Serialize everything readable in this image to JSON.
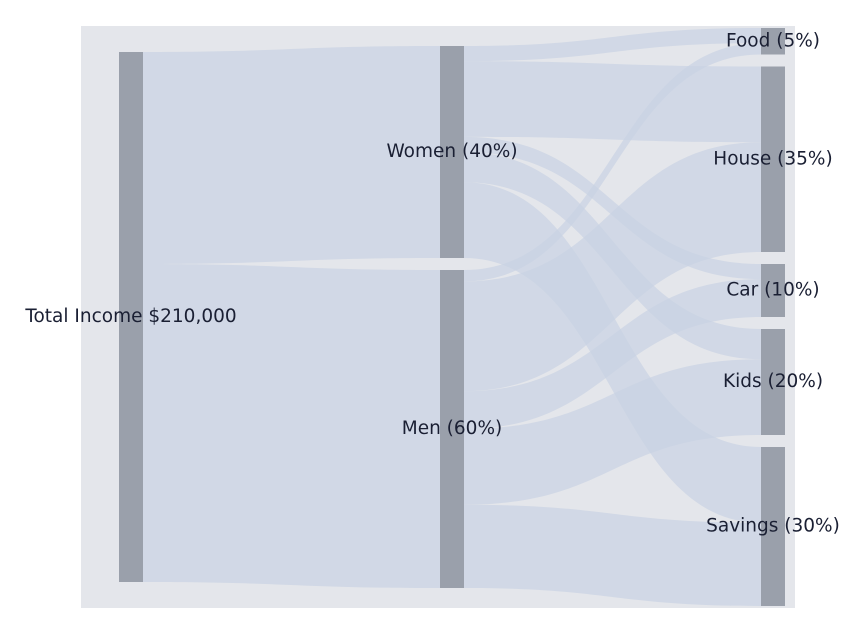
{
  "chart_data": {
    "type": "sankey",
    "title": "",
    "colors": {
      "background": "#e4e6eb",
      "node": "#9aa0ab",
      "link": "#c9d3e3",
      "text": "#1a1f33"
    },
    "nodes": [
      {
        "id": "total",
        "label": "Total Income $210,000",
        "column": 0
      },
      {
        "id": "women",
        "label": "Women (40%)",
        "column": 1
      },
      {
        "id": "men",
        "label": "Men (60%)",
        "column": 1
      },
      {
        "id": "food",
        "label": "Food (5%)",
        "column": 2
      },
      {
        "id": "house",
        "label": "House (35%)",
        "column": 2
      },
      {
        "id": "car",
        "label": "Car (10%)",
        "column": 2
      },
      {
        "id": "kids",
        "label": "Kids (20%)",
        "column": 2
      },
      {
        "id": "savings",
        "label": "Savings (30%)",
        "column": 2
      }
    ],
    "links": [
      {
        "source": "total",
        "target": "women",
        "value": 84000
      },
      {
        "source": "total",
        "target": "men",
        "value": 126000
      },
      {
        "source": "women",
        "target": "food",
        "value": 6000
      },
      {
        "source": "women",
        "target": "house",
        "value": 30000
      },
      {
        "source": "women",
        "target": "car",
        "value": 6000
      },
      {
        "source": "women",
        "target": "kids",
        "value": 12000
      },
      {
        "source": "women",
        "target": "savings",
        "value": 30000
      },
      {
        "source": "men",
        "target": "food",
        "value": 4500
      },
      {
        "source": "men",
        "target": "house",
        "value": 43500
      },
      {
        "source": "men",
        "target": "car",
        "value": 15000
      },
      {
        "source": "men",
        "target": "kids",
        "value": 30000
      },
      {
        "source": "men",
        "target": "savings",
        "value": 33000
      }
    ]
  }
}
